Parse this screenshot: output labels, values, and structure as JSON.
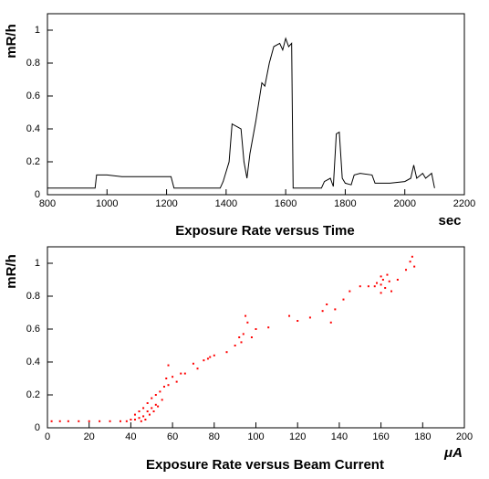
{
  "chart_data": [
    {
      "type": "line",
      "title": "Exposure Rate versus Time",
      "x_label": "sec",
      "y_label": "mR/h",
      "color": "#000000",
      "x": [
        800,
        960,
        965,
        1000,
        1050,
        1100,
        1150,
        1200,
        1215,
        1225,
        1380,
        1390,
        1410,
        1420,
        1440,
        1450,
        1460,
        1470,
        1480,
        1500,
        1520,
        1530,
        1545,
        1560,
        1580,
        1590,
        1600,
        1610,
        1620,
        1625,
        1720,
        1730,
        1750,
        1760,
        1770,
        1780,
        1790,
        1800,
        1820,
        1830,
        1850,
        1890,
        1900,
        1950,
        2000,
        2020,
        2030,
        2040,
        2060,
        2070,
        2090,
        2100
      ],
      "values": [
        0.04,
        0.04,
        0.12,
        0.12,
        0.11,
        0.11,
        0.11,
        0.11,
        0.11,
        0.04,
        0.04,
        0.08,
        0.2,
        0.43,
        0.41,
        0.4,
        0.2,
        0.1,
        0.25,
        0.45,
        0.68,
        0.66,
        0.8,
        0.9,
        0.92,
        0.88,
        0.95,
        0.9,
        0.92,
        0.04,
        0.04,
        0.08,
        0.1,
        0.05,
        0.37,
        0.38,
        0.1,
        0.07,
        0.06,
        0.12,
        0.13,
        0.12,
        0.07,
        0.07,
        0.08,
        0.1,
        0.18,
        0.1,
        0.13,
        0.1,
        0.13,
        0.04
      ],
      "xlim": [
        800,
        2200
      ],
      "xticks": [
        800,
        1000,
        1200,
        1400,
        1600,
        1800,
        2000,
        2200
      ],
      "ylim": [
        0,
        1.1
      ],
      "yticks": [
        0,
        0.2,
        0.4,
        0.6,
        0.8,
        1
      ],
      "grid": false
    },
    {
      "type": "scatter",
      "title": "Exposure Rate versus Beam Current",
      "x_label": "μA",
      "y_label": "mR/h",
      "color": "#ff0000",
      "x": [
        2,
        6,
        10,
        15,
        20,
        25,
        30,
        35,
        38,
        40,
        42,
        42,
        44,
        44,
        45,
        46,
        46,
        47,
        48,
        48,
        49,
        50,
        50,
        51,
        52,
        52,
        53,
        54,
        55,
        56,
        57,
        58,
        58,
        60,
        62,
        64,
        66,
        70,
        72,
        75,
        77,
        78,
        80,
        86,
        90,
        92,
        93,
        94,
        95,
        96,
        98,
        100,
        106,
        116,
        120,
        126,
        132,
        134,
        136,
        138,
        142,
        145,
        150,
        154,
        157,
        158,
        160,
        160,
        161,
        162,
        163,
        164,
        165,
        168,
        172,
        174,
        175,
        176,
        160
      ],
      "values": [
        0.04,
        0.04,
        0.04,
        0.04,
        0.04,
        0.04,
        0.04,
        0.04,
        0.04,
        0.05,
        0.05,
        0.08,
        0.06,
        0.1,
        0.04,
        0.12,
        0.07,
        0.05,
        0.1,
        0.15,
        0.08,
        0.12,
        0.18,
        0.1,
        0.14,
        0.2,
        0.13,
        0.22,
        0.17,
        0.25,
        0.3,
        0.26,
        0.38,
        0.31,
        0.28,
        0.33,
        0.33,
        0.39,
        0.36,
        0.41,
        0.42,
        0.43,
        0.44,
        0.46,
        0.5,
        0.55,
        0.52,
        0.57,
        0.68,
        0.64,
        0.55,
        0.6,
        0.61,
        0.68,
        0.65,
        0.67,
        0.71,
        0.75,
        0.64,
        0.72,
        0.78,
        0.83,
        0.86,
        0.86,
        0.86,
        0.88,
        0.87,
        0.92,
        0.9,
        0.85,
        0.93,
        0.89,
        0.83,
        0.9,
        0.96,
        1.01,
        1.04,
        0.98,
        0.82
      ],
      "xlim": [
        0,
        200
      ],
      "xticks": [
        0,
        20,
        40,
        60,
        80,
        100,
        120,
        140,
        160,
        180,
        200
      ],
      "ylim": [
        0,
        1.1
      ],
      "yticks": [
        0,
        0.2,
        0.4,
        0.6,
        0.8,
        1
      ],
      "grid": false
    }
  ]
}
